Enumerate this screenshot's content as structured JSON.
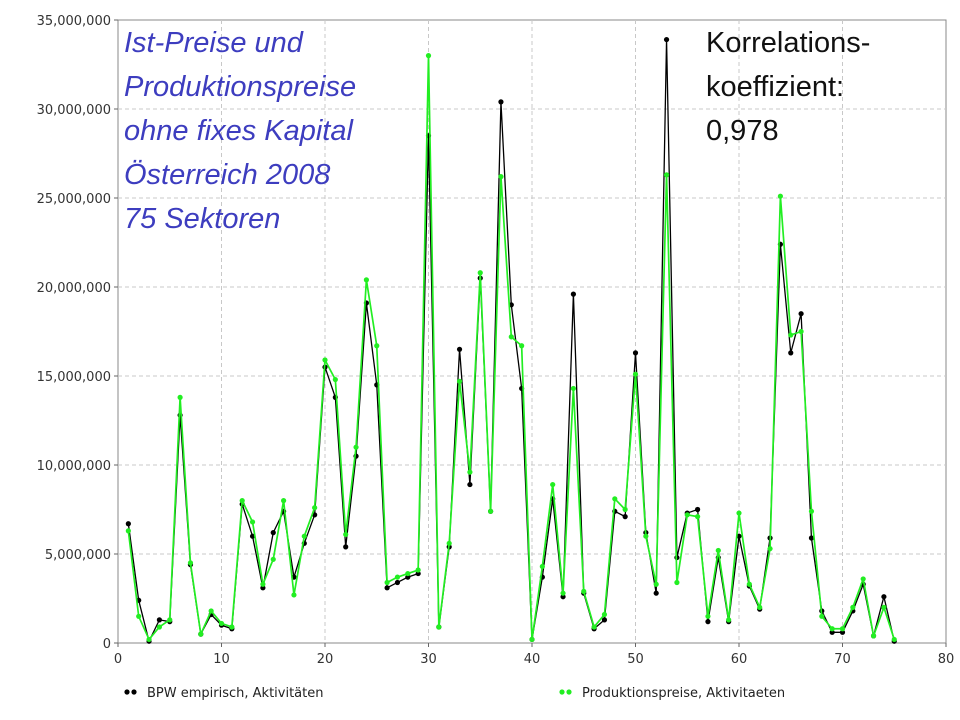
{
  "chart_data": {
    "type": "line",
    "title_lines": [
      "Ist-Preise und",
      "Produktionspreise",
      "ohne fixes Kapital",
      "Österreich 2008",
      "75 Sektoren"
    ],
    "annotation_lines": [
      "Korrelations-",
      "koeffizient:",
      "0,978"
    ],
    "xlim": [
      0,
      80
    ],
    "ylim": [
      0,
      35000000
    ],
    "x_ticks": [
      0,
      10,
      20,
      30,
      40,
      50,
      60,
      70,
      80
    ],
    "x_tick_labels": [
      "0",
      "10",
      "20",
      "30",
      "40",
      "50",
      "60",
      "70",
      "80"
    ],
    "y_ticks": [
      0,
      5000000,
      10000000,
      15000000,
      20000000,
      25000000,
      30000000,
      35000000
    ],
    "y_tick_labels": [
      "0",
      "5,000,000",
      "10,000,000",
      "15,000,000",
      "20,000,000",
      "25,000,000",
      "30,000,000",
      "35,000,000"
    ],
    "grid": true,
    "legend_position": "bottom",
    "x": [
      1,
      2,
      3,
      4,
      5,
      6,
      7,
      8,
      9,
      10,
      11,
      12,
      13,
      14,
      15,
      16,
      17,
      18,
      19,
      20,
      21,
      22,
      23,
      24,
      25,
      26,
      27,
      28,
      29,
      30,
      31,
      32,
      33,
      34,
      35,
      36,
      37,
      38,
      39,
      40,
      41,
      42,
      43,
      44,
      45,
      46,
      47,
      48,
      49,
      50,
      51,
      52,
      53,
      54,
      55,
      56,
      57,
      58,
      59,
      60,
      61,
      62,
      63,
      64,
      65,
      66,
      67,
      68,
      69,
      70,
      71,
      72,
      73,
      74,
      75
    ],
    "series": [
      {
        "name": "BPW empirisch, Aktivitäten",
        "color": "#000000",
        "values": [
          6700000,
          2400000,
          100000,
          1300000,
          1200000,
          12800000,
          4400000,
          500000,
          1600000,
          1000000,
          800000,
          7800000,
          6000000,
          3100000,
          6200000,
          7400000,
          3700000,
          5600000,
          7200000,
          15500000,
          13800000,
          5400000,
          10500000,
          19100000,
          14500000,
          3100000,
          3400000,
          3700000,
          3900000,
          28500000,
          900000,
          5400000,
          16500000,
          8900000,
          20500000,
          7400000,
          30400000,
          19000000,
          14300000,
          200000,
          3700000,
          8100000,
          2600000,
          19600000,
          2800000,
          800000,
          1300000,
          7400000,
          7100000,
          16300000,
          6200000,
          2800000,
          33900000,
          4800000,
          7300000,
          7500000,
          1200000,
          4800000,
          1200000,
          6000000,
          3200000,
          1900000,
          5900000,
          22400000,
          16300000,
          18500000,
          5900000,
          1800000,
          600000,
          600000,
          1800000,
          3300000,
          400000,
          2600000,
          100000
        ]
      },
      {
        "name": "Produktionspreise, Aktivitaeten",
        "color": "#22ee22",
        "values": [
          6300000,
          1500000,
          200000,
          900000,
          1300000,
          13800000,
          4500000,
          500000,
          1800000,
          1100000,
          900000,
          8000000,
          6800000,
          3300000,
          4700000,
          8000000,
          2700000,
          6000000,
          7600000,
          15900000,
          14800000,
          6100000,
          11000000,
          20400000,
          16700000,
          3400000,
          3700000,
          3900000,
          4100000,
          33000000,
          900000,
          5600000,
          14700000,
          9600000,
          20800000,
          7400000,
          26200000,
          17200000,
          16700000,
          200000,
          4300000,
          8900000,
          2800000,
          14300000,
          2900000,
          900000,
          1600000,
          8100000,
          7500000,
          15100000,
          6000000,
          3300000,
          26300000,
          3400000,
          7200000,
          7100000,
          1500000,
          5200000,
          1300000,
          7300000,
          3300000,
          2000000,
          5300000,
          25100000,
          17300000,
          17500000,
          7400000,
          1500000,
          800000,
          800000,
          2000000,
          3600000,
          400000,
          2000000,
          200000
        ]
      }
    ]
  }
}
